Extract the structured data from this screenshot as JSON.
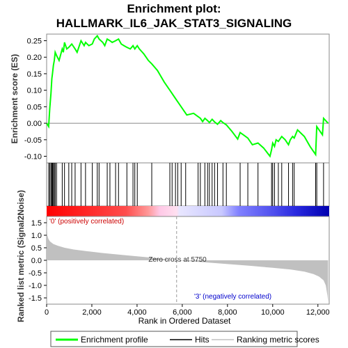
{
  "chart_data": {
    "type": "line",
    "title_lines": [
      "Enrichment plot:",
      "HALLMARK_IL6_JAK_STAT3_SIGNALING"
    ],
    "es_panel": {
      "ylabel": "Enrichment score (ES)",
      "ylim": [
        -0.12,
        0.27
      ],
      "yticks": [
        -0.1,
        -0.05,
        0.0,
        0.05,
        0.1,
        0.15,
        0.2,
        0.25
      ],
      "ytick_labels": [
        "-0.10",
        "-0.05",
        "0.00",
        "0.05",
        "0.10",
        "0.15",
        "0.20",
        "0.25"
      ],
      "series_name": "Enrichment profile",
      "color": "#00ff00",
      "x": [
        0,
        90,
        140,
        190,
        230,
        260,
        300,
        340,
        380,
        440,
        550,
        690,
        740,
        790,
        890,
        980,
        1110,
        1260,
        1350,
        1520,
        1660,
        1720,
        1870,
        2020,
        2110,
        2240,
        2320,
        2480,
        2570,
        2680,
        2800,
        2900,
        3050,
        3180,
        3300,
        3420,
        3550,
        3700,
        3820,
        3900,
        4010,
        4100,
        4300,
        4500,
        4650,
        4900,
        5200,
        5450,
        5700,
        5950,
        6200,
        6500,
        6700,
        6800,
        6900,
        7000,
        7120,
        7200,
        7320,
        7430,
        7560,
        7700,
        7800,
        7950,
        8200,
        8450,
        8560,
        8700,
        8900,
        9100,
        9350,
        9600,
        9880,
        9950,
        10000,
        10080,
        10150,
        10250,
        10400,
        10550,
        10700,
        10780,
        10880,
        10950,
        11100,
        11400,
        11650,
        11900,
        11950,
        12100,
        12200,
        12250,
        12450
      ],
      "y": [
        0.0,
        -0.01,
        0.045,
        0.09,
        0.135,
        0.15,
        0.175,
        0.19,
        0.215,
        0.205,
        0.19,
        0.225,
        0.215,
        0.245,
        0.225,
        0.23,
        0.24,
        0.225,
        0.215,
        0.25,
        0.235,
        0.245,
        0.235,
        0.24,
        0.255,
        0.265,
        0.255,
        0.245,
        0.235,
        0.255,
        0.25,
        0.245,
        0.25,
        0.255,
        0.24,
        0.235,
        0.23,
        0.225,
        0.235,
        0.225,
        0.235,
        0.225,
        0.21,
        0.19,
        0.18,
        0.16,
        0.125,
        0.1,
        0.075,
        0.05,
        0.025,
        0.03,
        0.02,
        0.015,
        0.005,
        0.015,
        0.008,
        0.002,
        0.012,
        0.004,
        -0.003,
        0.008,
        0.002,
        -0.005,
        -0.025,
        -0.048,
        -0.028,
        -0.035,
        -0.045,
        -0.065,
        -0.06,
        -0.075,
        -0.1,
        -0.08,
        -0.06,
        -0.07,
        -0.05,
        -0.055,
        -0.04,
        -0.05,
        -0.065,
        -0.05,
        -0.04,
        -0.045,
        -0.02,
        -0.04,
        -0.07,
        -0.095,
        -0.01,
        -0.025,
        -0.035,
        0.015,
        0.0
      ]
    },
    "hits": {
      "series_name": "Hits",
      "positions": [
        90,
        140,
        190,
        230,
        260,
        300,
        340,
        380,
        440,
        690,
        790,
        980,
        1110,
        1260,
        1520,
        1720,
        2020,
        2240,
        2320,
        2680,
        2800,
        3050,
        3180,
        3550,
        3820,
        3900,
        4010,
        4650,
        5450,
        5550,
        5700,
        5800,
        5950,
        6150,
        6700,
        6800,
        7000,
        7120,
        7200,
        7320,
        7430,
        7560,
        7800,
        7950,
        8560,
        8900,
        9350,
        9950,
        10000,
        10080,
        10250,
        10400,
        10700,
        10880,
        10950,
        11900,
        11950,
        12250
      ]
    },
    "metric_panel": {
      "ylabel": "Ranked list metric (Signal2Noise)",
      "ylim": [
        -1.75,
        1.75
      ],
      "yticks": [
        -1.5,
        -1.0,
        -0.5,
        0.0,
        0.5,
        1.0,
        1.5
      ],
      "ytick_labels": [
        "-1.5",
        "-1.0",
        "-0.5",
        "0.0",
        "0.5",
        "1.0",
        "1.5"
      ],
      "series_name": "Ranking metric scores",
      "color": "#c0c0c0",
      "x": [
        0,
        30,
        80,
        150,
        300,
        500,
        800,
        1200,
        1800,
        2500,
        3500,
        4500,
        5750,
        7000,
        8000,
        9000,
        10000,
        10800,
        11400,
        11800,
        12050,
        12250,
        12350,
        12420,
        12450
      ],
      "y": [
        1.55,
        1.0,
        0.85,
        0.75,
        0.65,
        0.58,
        0.5,
        0.43,
        0.36,
        0.29,
        0.2,
        0.12,
        0.0,
        -0.08,
        -0.15,
        -0.22,
        -0.3,
        -0.37,
        -0.45,
        -0.55,
        -0.65,
        -0.8,
        -1.0,
        -1.4,
        -1.65
      ]
    },
    "xaxis": {
      "xlabel": "Rank in Ordered Dataset",
      "xlim": [
        0,
        12500
      ],
      "xticks": [
        0,
        2000,
        4000,
        6000,
        8000,
        10000,
        12000
      ],
      "xtick_labels": [
        "0",
        "2,000",
        "4,000",
        "6,000",
        "8,000",
        "10,000",
        "12,000"
      ]
    },
    "annotations": {
      "positive_label": "'0' (positively correlated)",
      "positive_color": "#cc0000",
      "negative_label": "'3' (negatively correlated)",
      "negative_color": "#0000cc",
      "zero_cross_label": "Zero cross at 5750",
      "zero_cross_x": 5750
    },
    "legend": {
      "placement": "bottom",
      "items": [
        "Enrichment profile",
        "Hits",
        "Ranking metric scores"
      ]
    }
  }
}
